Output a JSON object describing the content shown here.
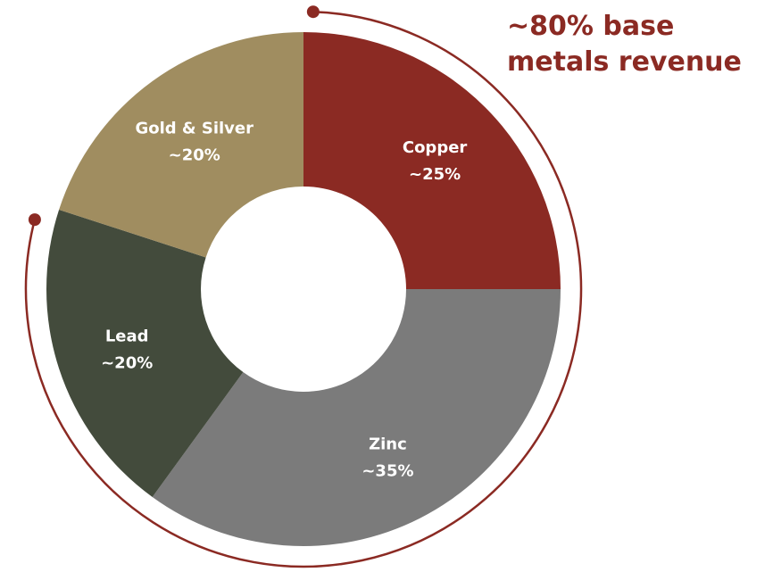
{
  "chart_data": {
    "type": "pie",
    "donut": true,
    "start_angle_deg": 0,
    "direction": "clockwise",
    "slices": [
      {
        "name": "Copper",
        "label": "~25%",
        "value": 25,
        "color": "#8b2a23"
      },
      {
        "name": "Zinc",
        "label": "~35%",
        "value": 35,
        "color": "#7b7b7b"
      },
      {
        "name": "Lead",
        "label": "~20%",
        "value": 20,
        "color": "#434b3c"
      },
      {
        "name": "Gold & Silver",
        "label": "~20%",
        "value": 20,
        "color": "#a08d60"
      }
    ],
    "annotation": {
      "lines": [
        "~80% base",
        "metals revenue"
      ],
      "value": 80,
      "color": "#8b2a23"
    },
    "legend": "none",
    "grid": false
  }
}
